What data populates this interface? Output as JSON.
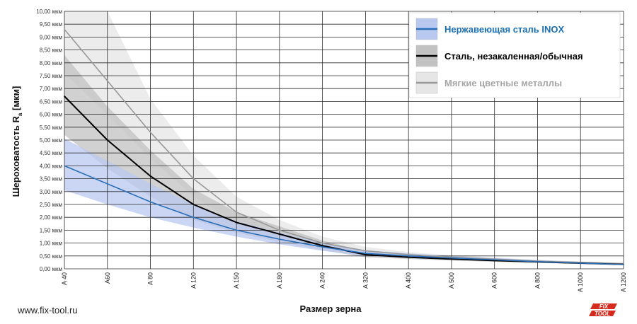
{
  "chart_data": {
    "type": "line",
    "xlabel": "Размер зерна",
    "ylabel_main": "Шероховатость R",
    "ylabel_sub": "a",
    "ylabel_unit": " [мкм]",
    "categories": [
      "A 40",
      "A60",
      "A 80",
      "A 120",
      "A 150",
      "A 180",
      "A 240",
      "A 320",
      "A 400",
      "A 500",
      "A 600",
      "A 800",
      "A 1000",
      "A 1200"
    ],
    "ylim": [
      0,
      10
    ],
    "yticks": [
      "0,00 мкм",
      "0,50 мкм",
      "1,00 мкм",
      "1,50 мкм",
      "2,00 мкм",
      "2,50 мкм",
      "3,00 мкм",
      "3,50 мкм",
      "4,00 мкм",
      "4,50 мкм",
      "5,00 мкм",
      "5,50 мкм",
      "6,00 мкм",
      "6,50 мкм",
      "7,00 мкм",
      "7,50 мкм",
      "8,00 мкм",
      "8,50 мкм",
      "9,00 мкм",
      "9,50 мкм",
      "10,00 мкм"
    ],
    "grid": true,
    "legend_position": "top-right",
    "series": [
      {
        "name": "Мягкие цветные металлы",
        "color": "#999999",
        "band_color": "#e6e6e6",
        "values": [
          9.3,
          7.3,
          5.3,
          3.5,
          2.2,
          1.5,
          1.0,
          0.7,
          0.55,
          0.45,
          0.38,
          0.3,
          0.25,
          0.2
        ],
        "band_low": [
          7.6,
          6.0,
          4.3,
          2.8,
          1.8,
          1.25,
          0.85,
          0.6,
          0.45,
          0.38,
          0.32,
          0.25,
          0.21,
          0.17
        ],
        "band_high": [
          10.0,
          10.0,
          6.6,
          4.4,
          2.8,
          1.9,
          1.25,
          0.85,
          0.65,
          0.52,
          0.44,
          0.35,
          0.29,
          0.23
        ]
      },
      {
        "name": "Сталь, незакаленная/обычная",
        "color": "#000000",
        "band_color": "#c2c2c2",
        "values": [
          6.7,
          5.0,
          3.6,
          2.5,
          1.8,
          1.35,
          0.9,
          0.55,
          0.45,
          0.38,
          0.32,
          0.27,
          0.22,
          0.17
        ],
        "band_low": [
          5.2,
          3.9,
          2.8,
          1.9,
          1.4,
          1.05,
          0.72,
          0.45,
          0.38,
          0.32,
          0.27,
          0.23,
          0.19,
          0.15
        ],
        "band_high": [
          8.3,
          6.3,
          4.6,
          3.1,
          2.2,
          1.65,
          1.1,
          0.68,
          0.55,
          0.46,
          0.39,
          0.32,
          0.26,
          0.2
        ]
      },
      {
        "name": "Нержавеющая сталь INOX",
        "color": "#2a6fb8",
        "band_color": "#b8c8ef",
        "values": [
          4.0,
          3.3,
          2.6,
          2.0,
          1.5,
          1.15,
          0.85,
          0.6,
          0.5,
          0.42,
          0.35,
          0.28,
          0.22,
          0.17
        ],
        "band_low": [
          3.05,
          2.5,
          2.0,
          1.6,
          1.25,
          0.95,
          0.7,
          0.5,
          0.42,
          0.35,
          0.3,
          0.24,
          0.19,
          0.15
        ],
        "band_high": [
          5.05,
          4.2,
          3.3,
          2.5,
          1.85,
          1.4,
          1.0,
          0.72,
          0.6,
          0.5,
          0.42,
          0.34,
          0.27,
          0.2
        ]
      }
    ],
    "legend_order": [
      2,
      1,
      0
    ],
    "legend_text_colors": [
      "#1a6fb0",
      "#000000",
      "#a5a5a5"
    ]
  },
  "footer": {
    "site": "www.fix-tool.ru",
    "logo_top": "FIX",
    "logo_bottom": "TOOL"
  }
}
